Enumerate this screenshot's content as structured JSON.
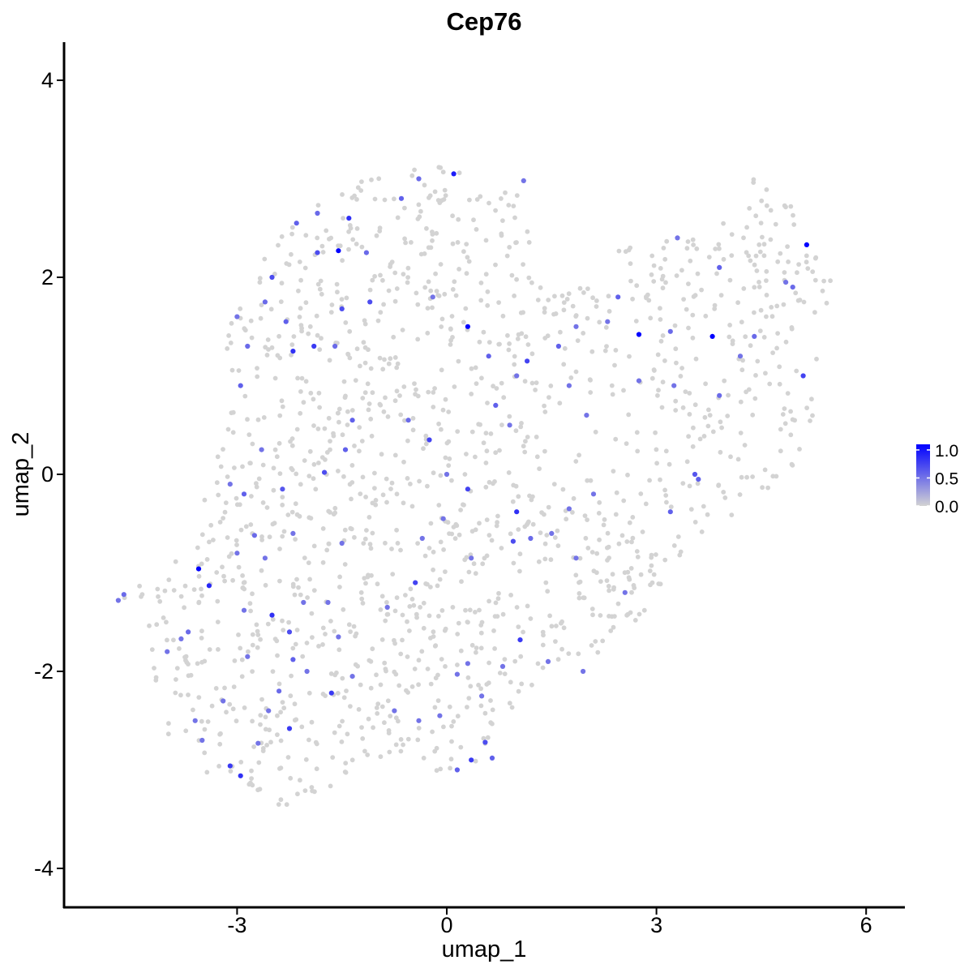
{
  "chart_data": {
    "type": "scatter",
    "title": "Cep76",
    "xlabel": "umap_1",
    "ylabel": "umap_2",
    "xlim": [
      -5.8,
      6.5
    ],
    "ylim": [
      -4.35,
      4.4
    ],
    "x_ticks": [
      -3,
      0,
      3,
      6
    ],
    "x_tick_labels": [
      "-3",
      "0",
      "3",
      "6"
    ],
    "y_ticks": [
      -4,
      -2,
      0,
      2,
      4
    ],
    "y_tick_labels": [
      "-4",
      "-2",
      "0",
      "2",
      "4"
    ],
    "grid": false,
    "legend": {
      "position": "right",
      "type": "colorbar",
      "ticks": [
        0.0,
        0.5,
        1.0
      ],
      "tick_labels": [
        "0.0",
        "0.5",
        "1.0"
      ],
      "range": [
        0,
        1.1
      ]
    },
    "color_low": "#d3d3d3",
    "color_high": "#0000ff",
    "expressed_points": [
      {
        "x": -4.7,
        "y": -1.28,
        "v": 0.5
      },
      {
        "x": -4.62,
        "y": -1.22,
        "v": 0.55
      },
      {
        "x": -3.55,
        "y": -0.96,
        "v": 1.1
      },
      {
        "x": -3.4,
        "y": -1.13,
        "v": 0.9
      },
      {
        "x": -4.0,
        "y": -1.8,
        "v": 0.5
      },
      {
        "x": -3.8,
        "y": -1.67,
        "v": 0.5
      },
      {
        "x": -3.7,
        "y": -1.6,
        "v": 0.55
      },
      {
        "x": -3.6,
        "y": -2.5,
        "v": 0.5
      },
      {
        "x": -3.5,
        "y": -2.7,
        "v": 0.5
      },
      {
        "x": -3.2,
        "y": -2.3,
        "v": 0.5
      },
      {
        "x": -3.1,
        "y": -2.96,
        "v": 0.8
      },
      {
        "x": -2.95,
        "y": -3.06,
        "v": 0.85
      },
      {
        "x": -2.7,
        "y": -2.73,
        "v": 0.5
      },
      {
        "x": -2.55,
        "y": -2.4,
        "v": 0.5
      },
      {
        "x": -2.4,
        "y": -2.2,
        "v": 0.55
      },
      {
        "x": -2.25,
        "y": -2.58,
        "v": 0.8
      },
      {
        "x": -2.2,
        "y": -1.88,
        "v": 0.6
      },
      {
        "x": -2.25,
        "y": -1.6,
        "v": 0.7
      },
      {
        "x": -2.5,
        "y": -1.43,
        "v": 0.85
      },
      {
        "x": -2.0,
        "y": -2.0,
        "v": 0.5
      },
      {
        "x": -2.85,
        "y": -1.85,
        "v": 0.5
      },
      {
        "x": -2.9,
        "y": -1.38,
        "v": 0.5
      },
      {
        "x": -3.0,
        "y": -0.8,
        "v": 0.5
      },
      {
        "x": -2.9,
        "y": -0.2,
        "v": 0.6
      },
      {
        "x": -3.1,
        "y": -0.1,
        "v": 0.5
      },
      {
        "x": -2.75,
        "y": -0.62,
        "v": 0.55
      },
      {
        "x": -2.6,
        "y": -0.85,
        "v": 0.5
      },
      {
        "x": -2.35,
        "y": -0.15,
        "v": 0.65
      },
      {
        "x": -2.2,
        "y": -0.6,
        "v": 0.5
      },
      {
        "x": -2.05,
        "y": -1.3,
        "v": 0.5
      },
      {
        "x": -1.75,
        "y": 0.02,
        "v": 0.7
      },
      {
        "x": -1.45,
        "y": 0.25,
        "v": 0.6
      },
      {
        "x": -1.5,
        "y": -0.7,
        "v": 0.5
      },
      {
        "x": -1.7,
        "y": -1.3,
        "v": 0.5
      },
      {
        "x": -1.55,
        "y": -1.65,
        "v": 0.5
      },
      {
        "x": -1.65,
        "y": -2.22,
        "v": 0.8
      },
      {
        "x": -1.35,
        "y": -2.05,
        "v": 0.5
      },
      {
        "x": -0.75,
        "y": -2.4,
        "v": 0.5
      },
      {
        "x": -0.4,
        "y": -2.5,
        "v": 0.5
      },
      {
        "x": -0.1,
        "y": -2.45,
        "v": 0.5
      },
      {
        "x": 0.15,
        "y": -3.0,
        "v": 0.6
      },
      {
        "x": 0.35,
        "y": -2.9,
        "v": 0.8
      },
      {
        "x": 0.55,
        "y": -2.72,
        "v": 0.7
      },
      {
        "x": 0.65,
        "y": -2.88,
        "v": 0.6
      },
      {
        "x": 0.15,
        "y": -2.03,
        "v": 0.5
      },
      {
        "x": 0.3,
        "y": -1.92,
        "v": 0.5
      },
      {
        "x": 0.5,
        "y": -2.25,
        "v": 0.5
      },
      {
        "x": 0.8,
        "y": -1.95,
        "v": 0.5
      },
      {
        "x": 1.05,
        "y": -1.68,
        "v": 0.8
      },
      {
        "x": 1.45,
        "y": -1.9,
        "v": 0.5
      },
      {
        "x": 1.95,
        "y": -2.0,
        "v": 0.5
      },
      {
        "x": -0.45,
        "y": -1.1,
        "v": 0.75
      },
      {
        "x": -0.85,
        "y": -1.35,
        "v": 0.5
      },
      {
        "x": -0.35,
        "y": -0.65,
        "v": 0.5
      },
      {
        "x": -0.05,
        "y": -0.45,
        "v": 0.5
      },
      {
        "x": 0.3,
        "y": -0.15,
        "v": 0.75
      },
      {
        "x": 0.0,
        "y": 0.0,
        "v": 0.5
      },
      {
        "x": 0.35,
        "y": -0.85,
        "v": 0.5
      },
      {
        "x": 0.95,
        "y": -0.68,
        "v": 0.7
      },
      {
        "x": 1.0,
        "y": -0.38,
        "v": 0.85
      },
      {
        "x": 1.2,
        "y": -0.65,
        "v": 0.55
      },
      {
        "x": 1.5,
        "y": -0.6,
        "v": 0.5
      },
      {
        "x": 1.75,
        "y": -0.35,
        "v": 0.5
      },
      {
        "x": 2.1,
        "y": -0.2,
        "v": 0.5
      },
      {
        "x": 1.85,
        "y": -0.85,
        "v": 0.5
      },
      {
        "x": 2.55,
        "y": -1.2,
        "v": 0.5
      },
      {
        "x": 3.2,
        "y": -0.38,
        "v": 0.6
      },
      {
        "x": 3.55,
        "y": 0.0,
        "v": 0.65
      },
      {
        "x": 3.6,
        "y": -0.05,
        "v": 0.6
      },
      {
        "x": -0.25,
        "y": 0.35,
        "v": 0.75
      },
      {
        "x": -0.55,
        "y": 0.55,
        "v": 0.55
      },
      {
        "x": -1.35,
        "y": 0.55,
        "v": 0.6
      },
      {
        "x": -1.6,
        "y": 1.3,
        "v": 0.55
      },
      {
        "x": -1.5,
        "y": 1.68,
        "v": 0.7
      },
      {
        "x": -1.9,
        "y": 1.3,
        "v": 0.8
      },
      {
        "x": -2.2,
        "y": 1.25,
        "v": 0.85
      },
      {
        "x": -2.3,
        "y": 1.55,
        "v": 0.6
      },
      {
        "x": -2.6,
        "y": 1.75,
        "v": 0.55
      },
      {
        "x": -2.5,
        "y": 2.0,
        "v": 0.7
      },
      {
        "x": -3.0,
        "y": 1.6,
        "v": 0.5
      },
      {
        "x": -2.95,
        "y": 0.9,
        "v": 0.6
      },
      {
        "x": -2.85,
        "y": 1.3,
        "v": 0.55
      },
      {
        "x": -2.65,
        "y": 0.25,
        "v": 0.5
      },
      {
        "x": -1.85,
        "y": 2.25,
        "v": 0.7
      },
      {
        "x": -1.55,
        "y": 2.27,
        "v": 1.1
      },
      {
        "x": -1.4,
        "y": 2.6,
        "v": 0.85
      },
      {
        "x": -1.15,
        "y": 2.25,
        "v": 0.55
      },
      {
        "x": -2.15,
        "y": 2.55,
        "v": 0.6
      },
      {
        "x": -1.85,
        "y": 2.65,
        "v": 0.55
      },
      {
        "x": -1.1,
        "y": 1.75,
        "v": 0.7
      },
      {
        "x": -0.65,
        "y": 2.8,
        "v": 0.6
      },
      {
        "x": 0.1,
        "y": 3.05,
        "v": 0.95
      },
      {
        "x": -0.4,
        "y": 3.0,
        "v": 0.55
      },
      {
        "x": 1.1,
        "y": 2.98,
        "v": 0.5
      },
      {
        "x": 0.3,
        "y": 1.5,
        "v": 1.1
      },
      {
        "x": -0.2,
        "y": 1.8,
        "v": 0.5
      },
      {
        "x": 0.6,
        "y": 1.2,
        "v": 0.6
      },
      {
        "x": 1.15,
        "y": 1.15,
        "v": 0.75
      },
      {
        "x": 1.6,
        "y": 1.3,
        "v": 0.6
      },
      {
        "x": 1.85,
        "y": 1.5,
        "v": 0.5
      },
      {
        "x": 2.3,
        "y": 1.55,
        "v": 0.5
      },
      {
        "x": 2.45,
        "y": 1.8,
        "v": 0.6
      },
      {
        "x": 2.75,
        "y": 1.42,
        "v": 1.1
      },
      {
        "x": 3.2,
        "y": 1.45,
        "v": 0.55
      },
      {
        "x": 3.8,
        "y": 1.4,
        "v": 1.1
      },
      {
        "x": 3.9,
        "y": 2.1,
        "v": 0.6
      },
      {
        "x": 4.2,
        "y": 1.2,
        "v": 0.5
      },
      {
        "x": 4.4,
        "y": 1.4,
        "v": 0.55
      },
      {
        "x": 4.85,
        "y": 1.95,
        "v": 0.5
      },
      {
        "x": 4.95,
        "y": 1.9,
        "v": 0.55
      },
      {
        "x": 5.15,
        "y": 2.33,
        "v": 1.1
      },
      {
        "x": 5.1,
        "y": 1.0,
        "v": 0.75
      },
      {
        "x": 3.9,
        "y": 0.8,
        "v": 0.55
      },
      {
        "x": 3.25,
        "y": 0.9,
        "v": 0.5
      },
      {
        "x": 3.3,
        "y": 2.4,
        "v": 0.5
      },
      {
        "x": 1.0,
        "y": 1.0,
        "v": 0.5
      },
      {
        "x": 0.7,
        "y": 0.7,
        "v": 0.6
      },
      {
        "x": 0.9,
        "y": 0.5,
        "v": 0.5
      },
      {
        "x": 1.75,
        "y": 0.9,
        "v": 0.5
      },
      {
        "x": 2.0,
        "y": 0.6,
        "v": 0.5
      },
      {
        "x": 2.75,
        "y": 0.95,
        "v": 0.5
      }
    ],
    "background_points_note": ""
  }
}
